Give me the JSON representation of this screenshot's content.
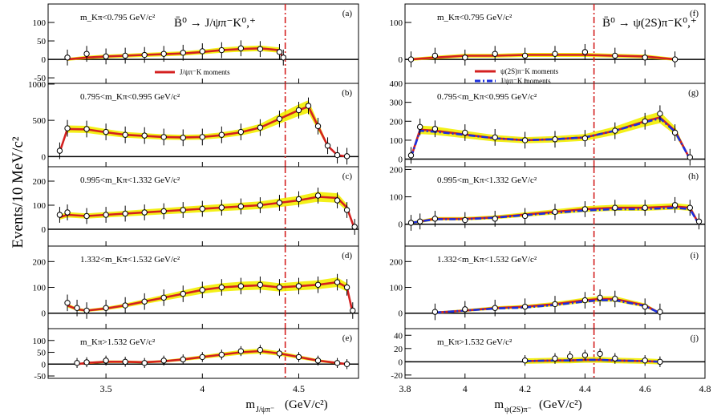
{
  "figure": {
    "ylabel": "Events/10 MeV/c²",
    "left_xlabel": "m J/ψπ⁻ (GeV/c²)",
    "left_xlabel_main": "m",
    "left_xlabel_sub": "J/ψπ⁻",
    "left_xlabel_unit": " (GeV/c²)",
    "right_xlabel_main": "m",
    "right_xlabel_sub": "ψ(2S)π⁻",
    "right_xlabel_unit": " (GeV/c²)",
    "left_title": "B̄⁰ → J/ψπ⁻K⁰,⁺",
    "right_title": "B̄⁰ → ψ(2S)π⁻K⁰,⁺",
    "left_legend": [
      "J/ψπ⁻K moments"
    ],
    "right_legend": [
      "ψ(2S)π⁻K moments",
      "J/ψπ⁻K moments"
    ],
    "colors": {
      "fit_red": "#d42020",
      "fit_blue": "#1a2ee0",
      "band_yellow": "#f2ee00",
      "marker_line": "#d42020"
    },
    "vertical_marker_x": 4.43
  },
  "chart_data": [
    {
      "panel": "a",
      "side": "left",
      "label": "(a)",
      "region": "m_Kπ<0.795 GeV/c²",
      "xlim": [
        3.2,
        4.81
      ],
      "ylim": [
        -65,
        150
      ],
      "yticks": [
        -50,
        0,
        50,
        100
      ],
      "x": [
        3.3,
        3.4,
        3.5,
        3.6,
        3.7,
        3.8,
        3.9,
        4.0,
        4.1,
        4.2,
        4.3,
        4.4,
        4.42
      ],
      "points": [
        5,
        15,
        8,
        10,
        12,
        15,
        18,
        22,
        25,
        30,
        28,
        20,
        5
      ],
      "fit": [
        0,
        5,
        8,
        10,
        12,
        14,
        16,
        20,
        25,
        28,
        30,
        25,
        0
      ]
    },
    {
      "panel": "b",
      "side": "left",
      "label": "(b)",
      "region": "0.795<m_Kπ<0.995 GeV/c²",
      "xlim": [
        3.2,
        4.81
      ],
      "ylim": [
        -140,
        1010
      ],
      "yticks": [
        0,
        500,
        1000
      ],
      "x": [
        3.26,
        3.3,
        3.4,
        3.5,
        3.6,
        3.7,
        3.8,
        3.9,
        4.0,
        4.1,
        4.2,
        4.3,
        4.4,
        4.5,
        4.55,
        4.6,
        4.65,
        4.7,
        4.75
      ],
      "points": [
        80,
        390,
        380,
        340,
        300,
        290,
        270,
        260,
        270,
        300,
        340,
        400,
        520,
        640,
        700,
        420,
        150,
        20,
        5
      ],
      "fit": [
        60,
        380,
        375,
        335,
        300,
        285,
        270,
        265,
        270,
        295,
        335,
        400,
        520,
        640,
        690,
        420,
        150,
        20,
        0
      ]
    },
    {
      "panel": "c",
      "side": "left",
      "label": "(c)",
      "region": "0.995<m_Kπ<1.332 GeV/c²",
      "xlim": [
        3.2,
        4.81
      ],
      "ylim": [
        -70,
        260
      ],
      "yticks": [
        0,
        100,
        200
      ],
      "x": [
        3.26,
        3.3,
        3.4,
        3.5,
        3.6,
        3.7,
        3.8,
        3.9,
        4.0,
        4.1,
        4.2,
        4.3,
        4.4,
        4.5,
        4.6,
        4.7,
        4.75,
        4.79
      ],
      "points": [
        60,
        70,
        55,
        60,
        65,
        70,
        75,
        80,
        85,
        90,
        95,
        100,
        110,
        125,
        140,
        120,
        80,
        10
      ],
      "fit": [
        50,
        60,
        55,
        60,
        65,
        70,
        75,
        80,
        85,
        90,
        95,
        100,
        110,
        120,
        135,
        130,
        90,
        0
      ]
    },
    {
      "panel": "d",
      "side": "left",
      "label": "(d)",
      "region": "1.332<m_Kπ<1.532 GeV/c²",
      "xlim": [
        3.2,
        4.81
      ],
      "ylim": [
        -60,
        260
      ],
      "yticks": [
        0,
        100,
        200
      ],
      "x": [
        3.3,
        3.35,
        3.4,
        3.5,
        3.6,
        3.7,
        3.8,
        3.9,
        4.0,
        4.1,
        4.2,
        4.3,
        4.4,
        4.5,
        4.6,
        4.7,
        4.75,
        4.78
      ],
      "points": [
        40,
        20,
        10,
        20,
        30,
        45,
        60,
        75,
        90,
        100,
        105,
        110,
        100,
        105,
        110,
        120,
        100,
        10
      ],
      "fit": [
        30,
        15,
        10,
        18,
        30,
        45,
        60,
        75,
        90,
        100,
        105,
        108,
        100,
        105,
        110,
        120,
        100,
        0
      ]
    },
    {
      "panel": "e",
      "side": "left",
      "label": "(e)",
      "region": "m_Kπ>1.532 GeV/c²",
      "xlim": [
        3.2,
        4.81
      ],
      "ylim": [
        -60,
        150
      ],
      "yticks": [
        -50,
        0,
        50,
        100
      ],
      "x": [
        3.35,
        3.4,
        3.5,
        3.6,
        3.7,
        3.8,
        3.9,
        4.0,
        4.1,
        4.2,
        4.3,
        4.4,
        4.5,
        4.6,
        4.7,
        4.75
      ],
      "points": [
        5,
        8,
        15,
        10,
        5,
        15,
        20,
        30,
        40,
        55,
        60,
        45,
        30,
        15,
        5,
        0
      ],
      "fit": [
        0,
        5,
        10,
        10,
        8,
        12,
        20,
        30,
        40,
        50,
        55,
        45,
        30,
        15,
        5,
        0
      ]
    },
    {
      "panel": "f",
      "side": "right",
      "label": "(f)",
      "region": "m_Kπ<0.795 GeV/c²",
      "xlim": [
        3.8,
        4.8
      ],
      "ylim": [
        -65,
        150
      ],
      "yticks": [
        0,
        100
      ],
      "x": [
        3.82,
        3.9,
        4.0,
        4.1,
        4.2,
        4.3,
        4.4,
        4.5,
        4.6,
        4.7
      ],
      "points": [
        0,
        10,
        5,
        15,
        10,
        15,
        20,
        10,
        5,
        0
      ],
      "fit": [
        0,
        5,
        10,
        10,
        12,
        12,
        12,
        10,
        8,
        0
      ]
    },
    {
      "panel": "g",
      "side": "right",
      "label": "(g)",
      "region": "0.795<m_Kπ<0.995 GeV/c²",
      "xlim": [
        3.8,
        4.8
      ],
      "ylim": [
        -40,
        400
      ],
      "yticks": [
        0,
        100,
        200,
        300,
        400
      ],
      "x": [
        3.82,
        3.85,
        3.9,
        4.0,
        4.1,
        4.2,
        4.3,
        4.4,
        4.5,
        4.6,
        4.65,
        4.7,
        4.75
      ],
      "points": [
        20,
        170,
        160,
        140,
        115,
        100,
        105,
        110,
        150,
        200,
        240,
        140,
        10
      ],
      "fit": [
        10,
        155,
        150,
        130,
        110,
        100,
        105,
        115,
        150,
        200,
        220,
        150,
        0
      ],
      "fit_alt": [
        10,
        150,
        145,
        128,
        110,
        100,
        105,
        115,
        150,
        195,
        215,
        145,
        0
      ]
    },
    {
      "panel": "h",
      "side": "right",
      "label": "(h)",
      "region": "0.995<m_Kπ<1.332 GeV/c²",
      "xlim": [
        3.8,
        4.8
      ],
      "ylim": [
        -80,
        210
      ],
      "yticks": [
        0,
        100,
        200
      ],
      "x": [
        3.82,
        3.85,
        3.9,
        4.0,
        4.1,
        4.2,
        4.3,
        4.4,
        4.5,
        4.6,
        4.7,
        4.75,
        4.78
      ],
      "points": [
        5,
        10,
        20,
        15,
        20,
        30,
        45,
        55,
        60,
        60,
        70,
        60,
        10
      ],
      "fit": [
        5,
        10,
        20,
        20,
        25,
        35,
        45,
        55,
        60,
        60,
        65,
        60,
        0
      ],
      "fit_alt": [
        5,
        10,
        18,
        18,
        24,
        33,
        42,
        50,
        55,
        55,
        60,
        55,
        0
      ]
    },
    {
      "panel": "i",
      "side": "right",
      "label": "(i)",
      "region": "1.332<m_Kπ<1.532 GeV/c²",
      "xlim": [
        3.8,
        4.8
      ],
      "ylim": [
        -60,
        260
      ],
      "yticks": [
        0,
        100,
        200
      ],
      "x": [
        3.9,
        4.0,
        4.1,
        4.2,
        4.3,
        4.4,
        4.45,
        4.5,
        4.6,
        4.65
      ],
      "points": [
        5,
        15,
        20,
        25,
        35,
        50,
        60,
        55,
        25,
        5
      ],
      "fit": [
        2,
        10,
        20,
        25,
        35,
        50,
        55,
        55,
        30,
        0
      ],
      "fit_alt": [
        2,
        10,
        18,
        22,
        32,
        45,
        50,
        50,
        28,
        0
      ]
    },
    {
      "panel": "j",
      "side": "right",
      "label": "(j)",
      "region": "m_Kπ>1.532 GeV/c²",
      "xlim": [
        3.8,
        4.8
      ],
      "ylim": [
        -25,
        50
      ],
      "yticks": [
        -20,
        0,
        20,
        40
      ],
      "x": [
        4.2,
        4.3,
        4.35,
        4.4,
        4.45,
        4.5,
        4.6,
        4.65
      ],
      "points": [
        2,
        5,
        8,
        10,
        12,
        5,
        2,
        0
      ],
      "fit": [
        1,
        2,
        2,
        3,
        3,
        2,
        1,
        0
      ],
      "fit_alt": [
        1,
        2,
        2,
        3,
        3,
        2,
        1,
        0
      ]
    }
  ]
}
